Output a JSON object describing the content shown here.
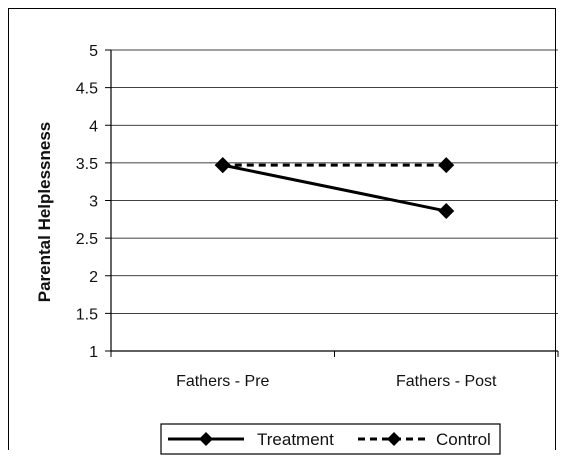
{
  "chart_data": {
    "type": "line",
    "categories": [
      "Fathers - Pre",
      "Fathers - Post"
    ],
    "series": [
      {
        "name": "Treatment",
        "values": [
          3.47,
          2.86
        ],
        "line_style": "solid",
        "marker": "diamond",
        "color": "#000000"
      },
      {
        "name": "Control",
        "values": [
          3.47,
          3.47
        ],
        "line_style": "dashed",
        "marker": "diamond",
        "color": "#000000"
      }
    ],
    "ylabel": "Parental Helplessness",
    "xlabel": "",
    "ylim": [
      1,
      5
    ],
    "yticks": [
      "1",
      "1.5",
      "2",
      "2.5",
      "3",
      "3.5",
      "4",
      "4.5",
      "5"
    ],
    "grid": true,
    "legend_position": "bottom"
  }
}
